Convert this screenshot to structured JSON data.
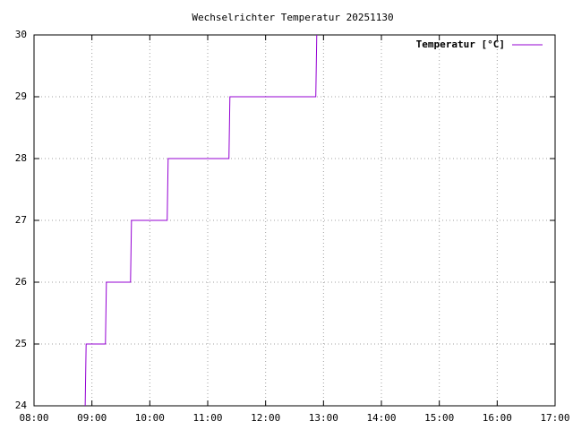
{
  "chart_data": {
    "type": "line",
    "title": "Wechselrichter Temperatur 20251130",
    "x": [
      "08:53",
      "08:54",
      "09:14",
      "09:15",
      "09:40",
      "09:41",
      "10:18",
      "10:19",
      "11:22",
      "11:23",
      "12:52",
      "12:53"
    ],
    "series": [
      {
        "name": "Temperatur [°C]",
        "color": "#9400d3",
        "values": [
          24,
          25,
          25,
          26,
          26,
          27,
          27,
          28,
          28,
          29,
          29,
          30
        ]
      }
    ],
    "xlim": [
      "08:00",
      "17:00"
    ],
    "xticks": [
      "08:00",
      "09:00",
      "10:00",
      "11:00",
      "12:00",
      "13:00",
      "14:00",
      "15:00",
      "16:00",
      "17:00"
    ],
    "ylim": [
      24,
      30
    ],
    "yticks": [
      24,
      25,
      26,
      27,
      28,
      29,
      30
    ],
    "grid": true,
    "legend": "top-right"
  }
}
